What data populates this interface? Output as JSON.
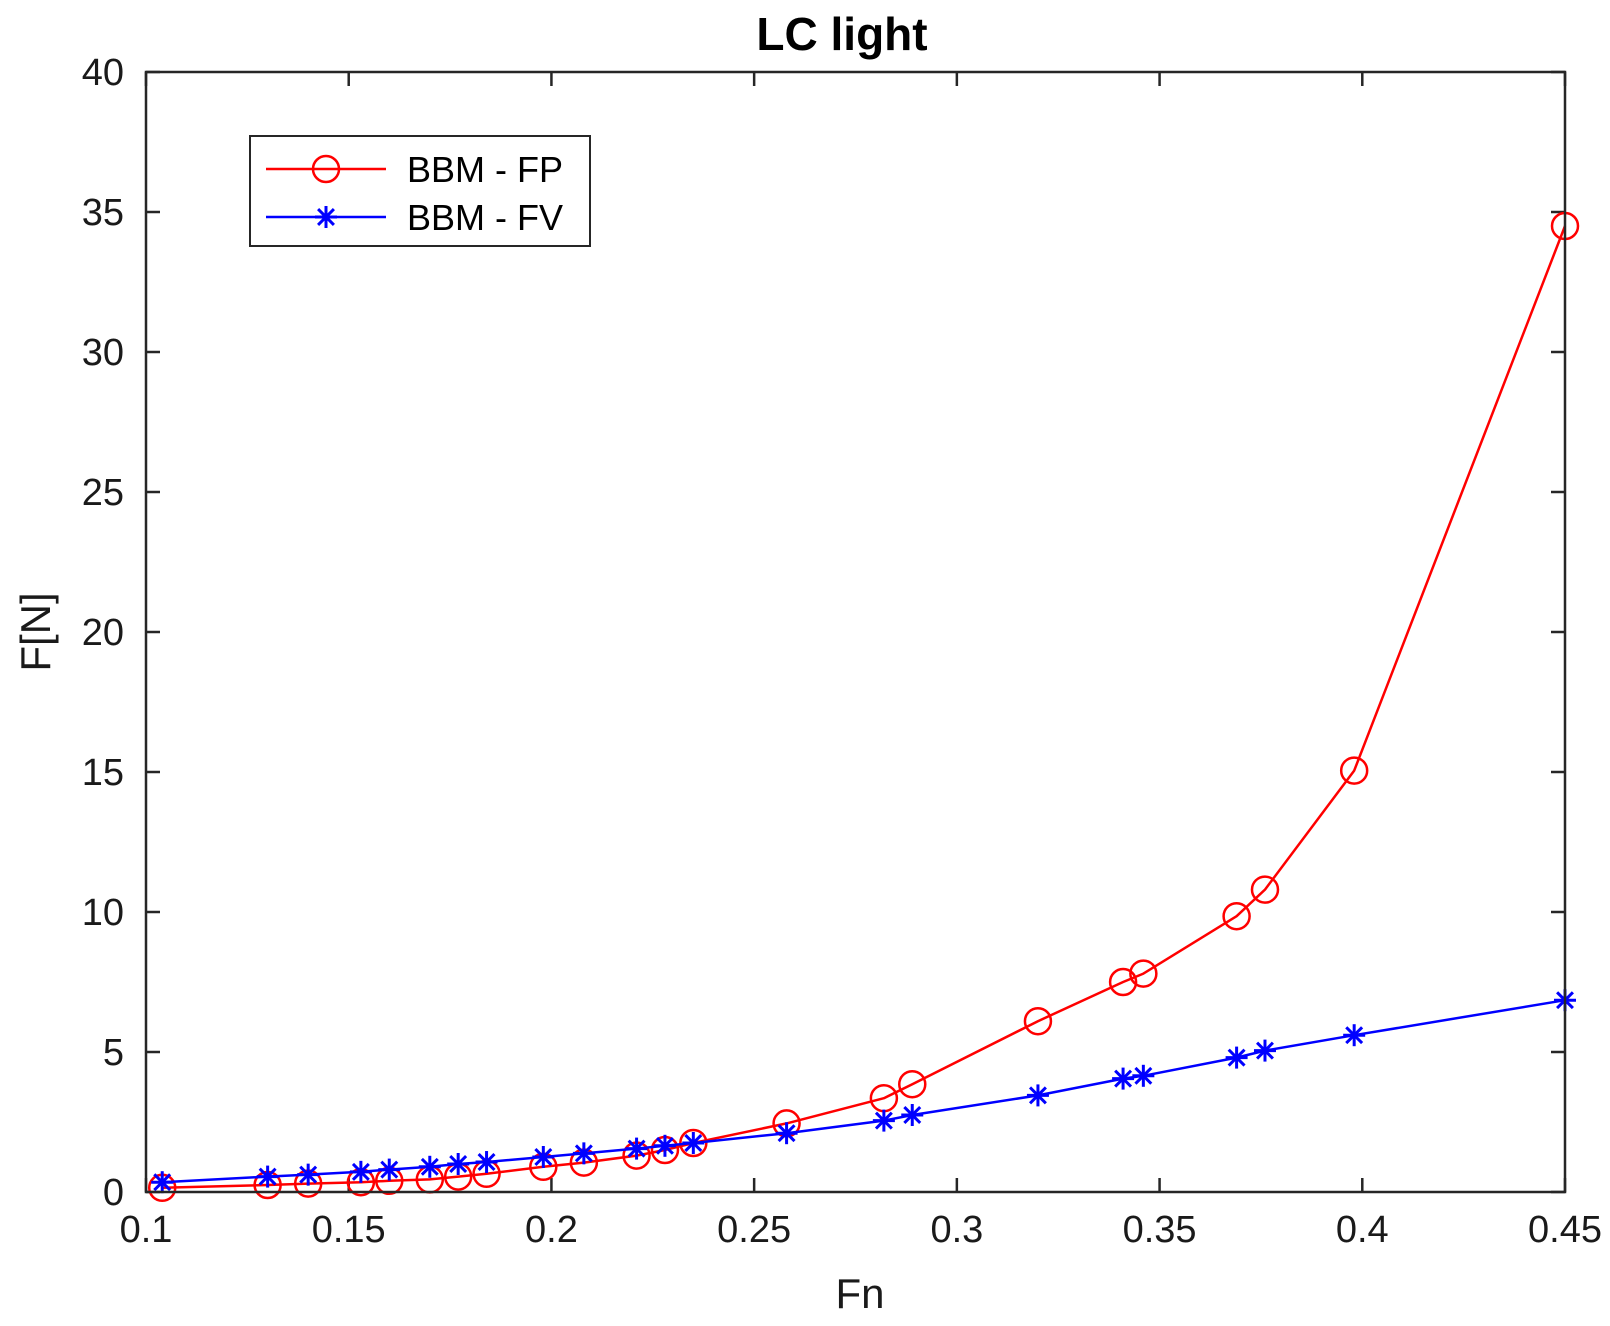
{
  "chart_data": {
    "type": "line",
    "title": "LC light",
    "xlabel": "Fn",
    "ylabel": "F[N]",
    "xlim": [
      0.1,
      0.45
    ],
    "ylim": [
      0,
      40
    ],
    "grid": false,
    "legend_position": "top-left",
    "x_tick_labels": [
      "0.1",
      "0.15",
      "0.2",
      "0.25",
      "0.3",
      "0.35",
      "0.4",
      "0.45"
    ],
    "y_tick_labels": [
      "0",
      "5",
      "10",
      "15",
      "20",
      "25",
      "30",
      "35",
      "40"
    ],
    "x_ticks": [
      0.1,
      0.15,
      0.2,
      0.25,
      0.3,
      0.35,
      0.4,
      0.45
    ],
    "y_ticks": [
      0,
      5,
      10,
      15,
      20,
      25,
      30,
      35,
      40
    ],
    "series": [
      {
        "name": "BBM - FP",
        "color": "#ff0000",
        "marker": "circle",
        "x": [
          0.104,
          0.13,
          0.14,
          0.153,
          0.16,
          0.17,
          0.177,
          0.184,
          0.198,
          0.208,
          0.221,
          0.228,
          0.235,
          0.258,
          0.282,
          0.289,
          0.32,
          0.341,
          0.346,
          0.369,
          0.376,
          0.398,
          0.45
        ],
        "y": [
          0.15,
          0.25,
          0.3,
          0.35,
          0.4,
          0.45,
          0.55,
          0.65,
          0.9,
          1.05,
          1.3,
          1.5,
          1.75,
          2.45,
          3.35,
          3.85,
          6.1,
          7.5,
          7.8,
          9.85,
          10.8,
          15.05,
          34.5
        ]
      },
      {
        "name": "BBM - FV",
        "color": "#0000ff",
        "marker": "asterisk",
        "x": [
          0.104,
          0.13,
          0.14,
          0.153,
          0.16,
          0.17,
          0.177,
          0.184,
          0.198,
          0.208,
          0.221,
          0.228,
          0.235,
          0.258,
          0.282,
          0.289,
          0.32,
          0.341,
          0.346,
          0.369,
          0.376,
          0.398,
          0.45
        ],
        "y": [
          0.35,
          0.55,
          0.62,
          0.72,
          0.8,
          0.9,
          1.0,
          1.07,
          1.25,
          1.38,
          1.55,
          1.65,
          1.75,
          2.1,
          2.55,
          2.75,
          3.45,
          4.05,
          4.15,
          4.8,
          5.05,
          5.6,
          6.85
        ]
      }
    ]
  }
}
